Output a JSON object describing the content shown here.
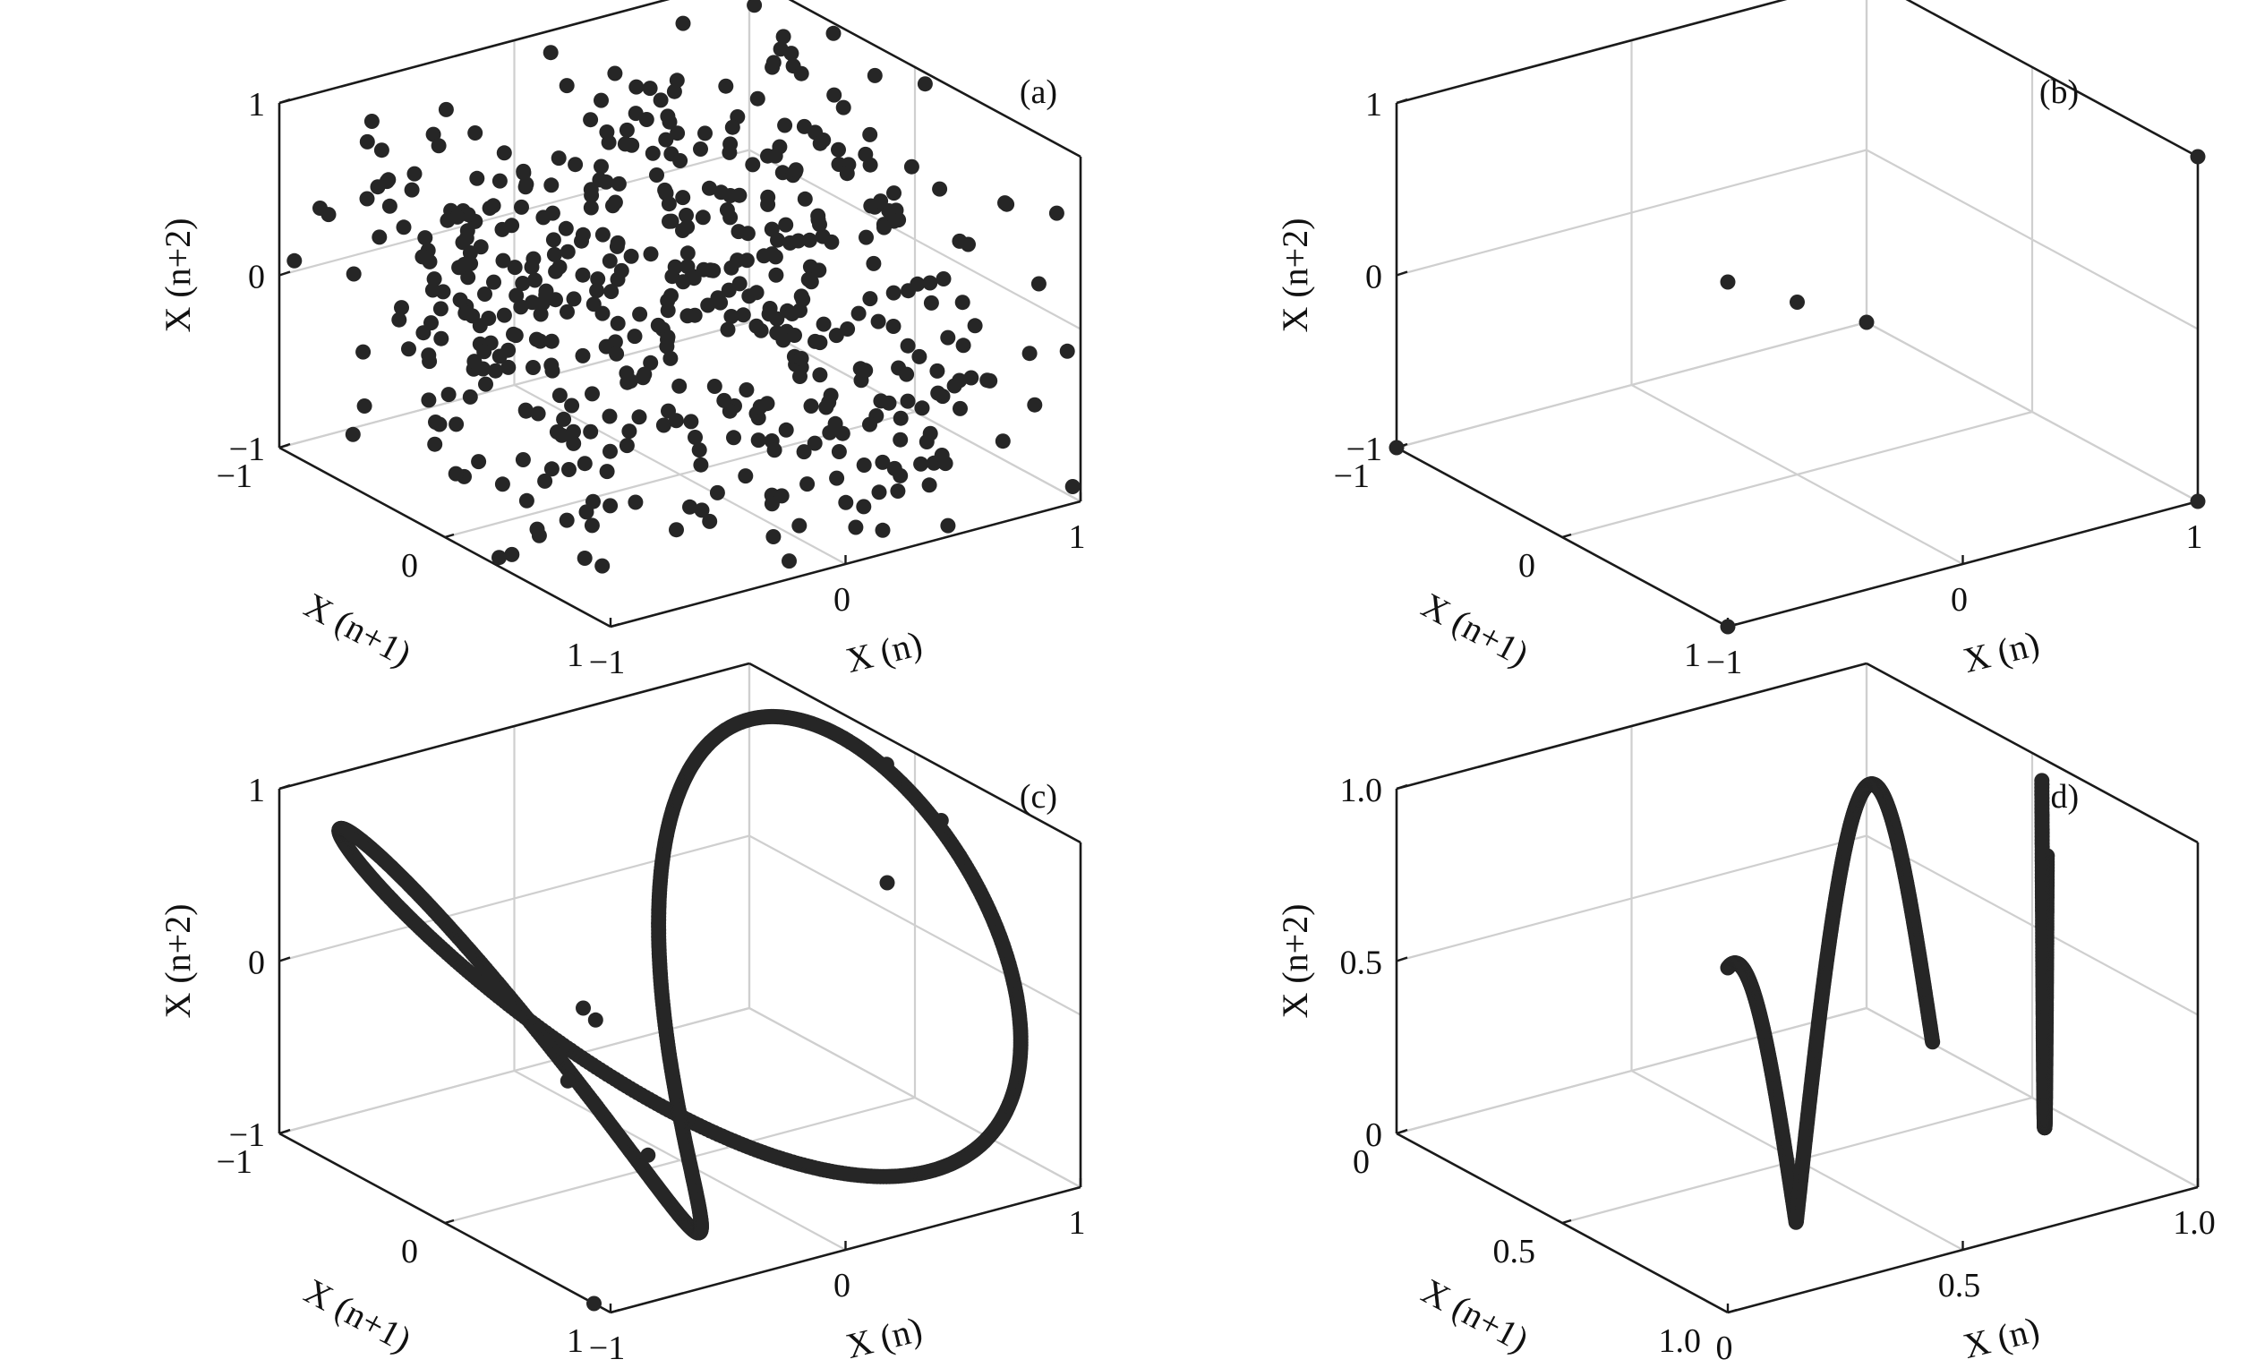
{
  "colors": {
    "marker": "#262626",
    "box": "#1a1a1a",
    "grid": "#cfcfcf"
  },
  "chart_data": [
    {
      "type": "scatter",
      "panel_label": "(a)",
      "xlabel": "X (n)",
      "ylabel": "X (n+1)",
      "zlabel": "X (n+2)",
      "xlim": [
        -1,
        1
      ],
      "ylim": [
        -1,
        1
      ],
      "zlim": [
        -1,
        1
      ],
      "xticks": [
        "−1",
        "0",
        "1"
      ],
      "yticks": [
        "−1",
        "0",
        "1"
      ],
      "zticks": [
        "−1",
        "0",
        "1"
      ],
      "grid": true,
      "pattern": "uniform random scatter filling the cube",
      "n_points": 500,
      "points": [
        [
          0.45,
          -0.32,
          0.88
        ],
        [
          -0.71,
          0.12,
          -0.44
        ],
        [
          0.03,
          0.77,
          0.21
        ],
        [
          -0.26,
          -0.9,
          0.63
        ],
        [
          0.91,
          0.55,
          -0.82
        ],
        [
          -0.58,
          -0.14,
          0.07
        ],
        [
          0.34,
          0.29,
          -0.69
        ],
        [
          0.66,
          -0.81,
          0.34
        ]
      ]
    },
    {
      "type": "scatter",
      "panel_label": "(b)",
      "xlabel": "X (n)",
      "ylabel": "X (n+1)",
      "zlabel": "X (n+2)",
      "xlim": [
        -1,
        1
      ],
      "ylim": [
        -1,
        1
      ],
      "zlim": [
        -1,
        1
      ],
      "xticks": [
        "−1",
        "0",
        "1"
      ],
      "yticks": [
        "−1",
        "0",
        "1"
      ],
      "zticks": [
        "−1",
        "0",
        "1"
      ],
      "grid": true,
      "points": [
        [
          -1,
          1,
          1
        ],
        [
          1,
          1,
          1
        ],
        [
          1,
          -1,
          1
        ],
        [
          -1,
          -1,
          -1
        ],
        [
          1,
          -1,
          -1
        ],
        [
          1,
          1,
          -1
        ],
        [
          -1,
          1,
          -1
        ],
        [
          0,
          0,
          0
        ]
      ]
    },
    {
      "type": "scatter",
      "panel_label": "(c)",
      "xlabel": "X (n)",
      "ylabel": "X (n+1)",
      "zlabel": "X (n+2)",
      "xlim": [
        -1,
        1
      ],
      "ylim": [
        -1,
        1
      ],
      "zlim": [
        -1,
        1
      ],
      "xticks": [
        "−1",
        "0",
        "1"
      ],
      "yticks": [
        "−1",
        "0",
        "1"
      ],
      "zticks": [
        "−1",
        "0",
        "1"
      ],
      "grid": true,
      "pattern": "dense closed curve (attractor trace)",
      "points": [
        [
          1,
          -1,
          -1
        ],
        [
          0.5,
          -0.2,
          0.75
        ],
        [
          0,
          0.9,
          0.5
        ],
        [
          -1,
          0.5,
          0
        ],
        [
          -0.3,
          -0.9,
          -0.8
        ],
        [
          1,
          1,
          0.7
        ],
        [
          0.4,
          1,
          0.45
        ],
        [
          1,
          1,
          -1
        ]
      ]
    },
    {
      "type": "scatter",
      "panel_label": "(d)",
      "xlabel": "X (n)",
      "ylabel": "X (n+1)",
      "zlabel": "X (n+2)",
      "xlim": [
        0,
        1
      ],
      "ylim": [
        0,
        1
      ],
      "zlim": [
        0,
        1
      ],
      "xticks": [
        "0",
        "0.5",
        "1.0"
      ],
      "yticks": [
        "0",
        "0.5",
        "1.0"
      ],
      "zticks": [
        "0",
        "0.5",
        "1.0"
      ],
      "grid": true,
      "pattern": "dense piecewise curve (attractor trace)",
      "points": [
        [
          0,
          1,
          1
        ],
        [
          0.5,
          0.5,
          0.1
        ],
        [
          1,
          0.3,
          0.95
        ],
        [
          0.2,
          1,
          1.35
        ],
        [
          0.55,
          0.1,
          0.25
        ],
        [
          0.9,
          0.9,
          0.8
        ]
      ]
    }
  ]
}
